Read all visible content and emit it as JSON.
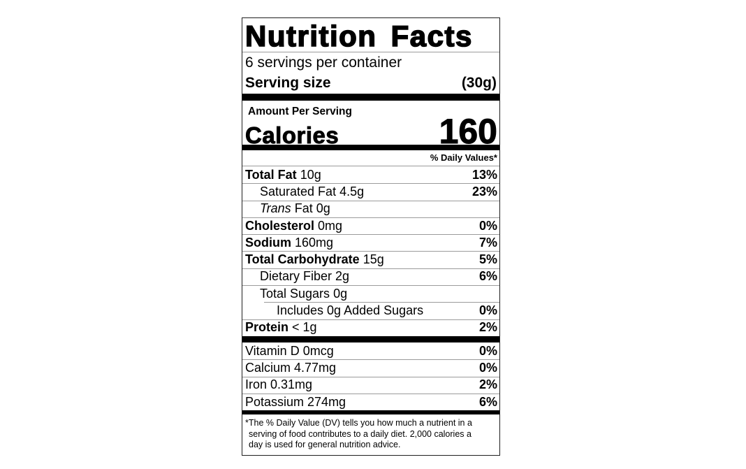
{
  "label": {
    "title": "Nutrition Facts",
    "servings_per_container": "6 servings per container",
    "serving_size_label": "Serving size",
    "serving_size_value": "(30g)",
    "amount_per_serving": "Amount Per Serving",
    "calories_label": "Calories",
    "calories_value": "160",
    "daily_values_header": "% Daily Values*",
    "nutrients": [
      {
        "name": "Total Fat",
        "amount": "10g",
        "dv": "13%"
      },
      {
        "name": "Saturated Fat",
        "amount": "4.5g",
        "dv": "23%"
      },
      {
        "name": "Trans",
        "amount": "Fat 0g",
        "dv": ""
      },
      {
        "name": "Cholesterol",
        "amount": "0mg",
        "dv": "0%"
      },
      {
        "name": "Sodium",
        "amount": "160mg",
        "dv": "7%"
      },
      {
        "name": "Total Carbohydrate",
        "amount": "15g",
        "dv": "5%"
      },
      {
        "name": "Dietary Fiber",
        "amount": "2g",
        "dv": "6%"
      },
      {
        "name": "Total Sugars",
        "amount": "0g",
        "dv": ""
      },
      {
        "name": "Includes 0g Added Sugars",
        "amount": "",
        "dv": "0%"
      },
      {
        "name": "Protein",
        "amount": "< 1g",
        "dv": "2%"
      }
    ],
    "vitamins": [
      {
        "name": "Vitamin D 0mcg",
        "dv": "0%"
      },
      {
        "name": "Calcium 4.77mg",
        "dv": "0%"
      },
      {
        "name": "Iron 0.31mg",
        "dv": "2%"
      },
      {
        "name": "Potassium 274mg",
        "dv": "6%"
      }
    ],
    "footnote": "*The % Daily Value (DV) tells you how much a nutrient in a\nserving of food contributes to a daily diet. 2,000 calories a\nday is used for general nutrition advice."
  },
  "colors": {
    "text": "#000000",
    "background": "#ffffff",
    "hairline": "#9b9b9b",
    "bar": "#000000"
  }
}
